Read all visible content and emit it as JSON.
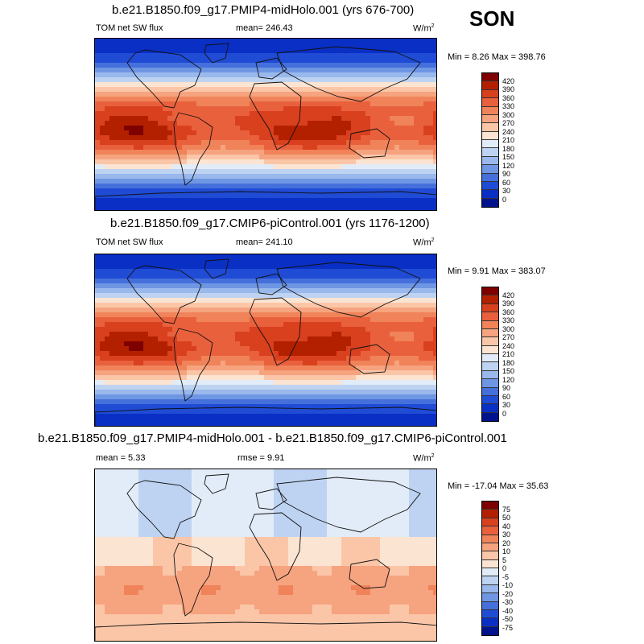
{
  "season": "SON",
  "panels": [
    {
      "title": "b.e21.B1850.f09_g17.PMIP4-midHolo.001 (yrs 676-700)",
      "var_label": "TOM net SW flux",
      "mean_label": "mean= 246.43",
      "rmse_label": "",
      "units": "W/m",
      "units_sup": "2",
      "minmax": "Min =   8.26 Max = 398.76",
      "colorbar_labels": [
        "420",
        "390",
        "360",
        "330",
        "300",
        "270",
        "240",
        "210",
        "180",
        "150",
        "120",
        "90",
        "60",
        "30",
        "0"
      ],
      "colorbar_colors": [
        "#7f0000",
        "#b22000",
        "#d8401e",
        "#e9603d",
        "#f08359",
        "#f6a37f",
        "#fbc6a8",
        "#fbe4d2",
        "#e2ecf8",
        "#bed3f2",
        "#99b8ec",
        "#6f96e3",
        "#4570dc",
        "#1f4bd5",
        "#0a2fc4",
        "#00138c"
      ],
      "field": "sw"
    },
    {
      "title": "b.e21.B1850.f09_g17.CMIP6-piControl.001 (yrs 1176-1200)",
      "var_label": "TOM net SW flux",
      "mean_label": "mean= 241.10",
      "rmse_label": "",
      "units": "W/m",
      "units_sup": "2",
      "minmax": "Min =   9.91 Max = 383.07",
      "colorbar_labels": [
        "420",
        "390",
        "360",
        "330",
        "300",
        "270",
        "240",
        "210",
        "180",
        "150",
        "120",
        "90",
        "60",
        "30",
        "0"
      ],
      "colorbar_colors": [
        "#7f0000",
        "#b22000",
        "#d8401e",
        "#e9603d",
        "#f08359",
        "#f6a37f",
        "#fbc6a8",
        "#fbe4d2",
        "#e2ecf8",
        "#bed3f2",
        "#99b8ec",
        "#6f96e3",
        "#4570dc",
        "#1f4bd5",
        "#0a2fc4",
        "#00138c"
      ],
      "field": "sw"
    },
    {
      "title": "b.e21.B1850.f09_g17.PMIP4-midHolo.001 - b.e21.B1850.f09_g17.CMIP6-piControl.001",
      "var_label": "mean =   5.33",
      "mean_label": "rmse =   9.91",
      "rmse_label": "",
      "units": "W/m",
      "units_sup": "2",
      "minmax": "Min = -17.04 Max =  35.63",
      "colorbar_labels": [
        "75",
        "50",
        "40",
        "30",
        "20",
        "10",
        "5",
        "0",
        "-5",
        "-10",
        "-20",
        "-30",
        "-40",
        "-50",
        "-75"
      ],
      "colorbar_colors": [
        "#7f0000",
        "#b22000",
        "#d8401e",
        "#e9603d",
        "#f08359",
        "#f6a37f",
        "#fbc6a8",
        "#fbe4d2",
        "#e2ecf8",
        "#bed3f2",
        "#99b8ec",
        "#6f96e3",
        "#4570dc",
        "#1f4bd5",
        "#0a2fc4",
        "#00138c"
      ],
      "field": "diff"
    }
  ]
}
